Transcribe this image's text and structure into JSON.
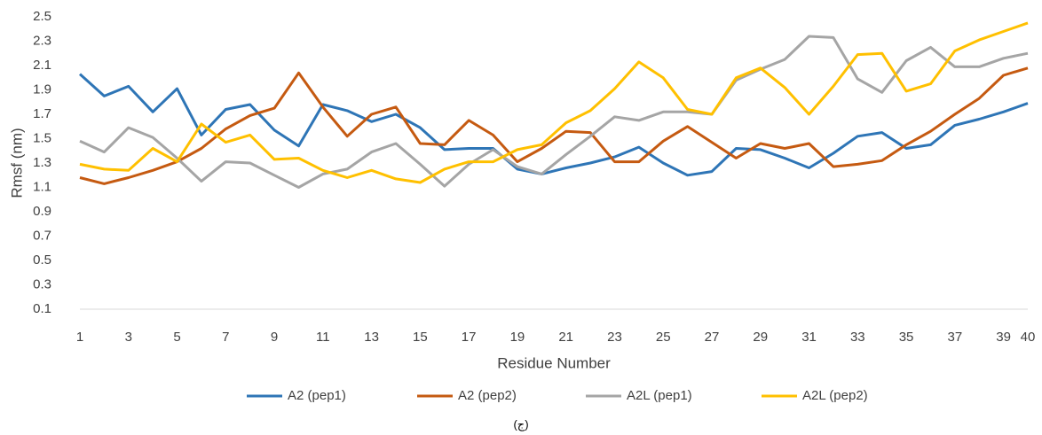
{
  "chart_data": {
    "type": "line",
    "y_label": "Rmsf (nm)",
    "x_label": "Residue Number",
    "caption": "(ج)",
    "x": [
      1,
      2,
      3,
      4,
      5,
      6,
      7,
      8,
      9,
      10,
      11,
      12,
      13,
      14,
      15,
      16,
      17,
      18,
      19,
      20,
      21,
      22,
      23,
      24,
      25,
      26,
      27,
      28,
      29,
      30,
      31,
      32,
      33,
      34,
      35,
      36,
      37,
      38,
      39,
      40
    ],
    "xlim": [
      1,
      40
    ],
    "xticks": [
      1,
      3,
      5,
      7,
      9,
      11,
      13,
      15,
      17,
      19,
      21,
      23,
      25,
      27,
      29,
      31,
      33,
      35,
      37,
      39,
      40
    ],
    "ylim": [
      0.1,
      2.5
    ],
    "yticks": [
      0.1,
      0.3,
      0.5,
      0.7,
      0.9,
      1.1,
      1.3,
      1.5,
      1.7,
      1.9,
      2.1,
      2.3,
      2.5
    ],
    "grid": false,
    "legend": "bottom",
    "series": [
      {
        "name": "A2 (pep1)",
        "color": "#2e75b6",
        "values": [
          2.03,
          1.85,
          1.93,
          1.72,
          1.91,
          1.53,
          1.74,
          1.78,
          1.57,
          1.44,
          1.78,
          1.73,
          1.64,
          1.7,
          1.59,
          1.41,
          1.42,
          1.42,
          1.25,
          1.21,
          1.26,
          1.3,
          1.35,
          1.43,
          1.3,
          1.2,
          1.23,
          1.42,
          1.41,
          1.34,
          1.26,
          1.38,
          1.52,
          1.55,
          1.42,
          1.45,
          1.61,
          1.66,
          1.72,
          1.79
        ]
      },
      {
        "name": "A2 (pep2)",
        "color": "#c55a11",
        "values": [
          1.18,
          1.13,
          1.18,
          1.24,
          1.31,
          1.42,
          1.58,
          1.69,
          1.75,
          2.04,
          1.76,
          1.52,
          1.7,
          1.76,
          1.46,
          1.45,
          1.65,
          1.53,
          1.31,
          1.42,
          1.56,
          1.55,
          1.31,
          1.31,
          1.48,
          1.6,
          1.47,
          1.34,
          1.46,
          1.42,
          1.46,
          1.27,
          1.29,
          1.32,
          1.45,
          1.56,
          1.7,
          1.83,
          2.02,
          2.08
        ]
      },
      {
        "name": "A2L (pep1)",
        "color": "#a5a5a5",
        "values": [
          1.48,
          1.39,
          1.59,
          1.51,
          1.34,
          1.15,
          1.31,
          1.3,
          1.2,
          1.1,
          1.21,
          1.25,
          1.39,
          1.46,
          1.29,
          1.11,
          1.29,
          1.41,
          1.27,
          1.21,
          1.37,
          1.52,
          1.68,
          1.65,
          1.72,
          1.72,
          1.7,
          1.98,
          2.07,
          2.15,
          2.34,
          2.33,
          1.99,
          1.88,
          2.14,
          2.25,
          2.09,
          2.09,
          2.16,
          2.2
        ]
      },
      {
        "name": "A2L (pep2)",
        "color": "#ffc000",
        "values": [
          1.29,
          1.25,
          1.24,
          1.42,
          1.31,
          1.62,
          1.47,
          1.53,
          1.33,
          1.34,
          1.24,
          1.18,
          1.24,
          1.17,
          1.14,
          1.25,
          1.31,
          1.31,
          1.41,
          1.45,
          1.63,
          1.73,
          1.91,
          2.13,
          2.0,
          1.74,
          1.7,
          2.0,
          2.08,
          1.92,
          1.7,
          1.93,
          2.19,
          2.2,
          1.89,
          1.95,
          2.22,
          2.31,
          2.38,
          2.45
        ]
      }
    ]
  }
}
